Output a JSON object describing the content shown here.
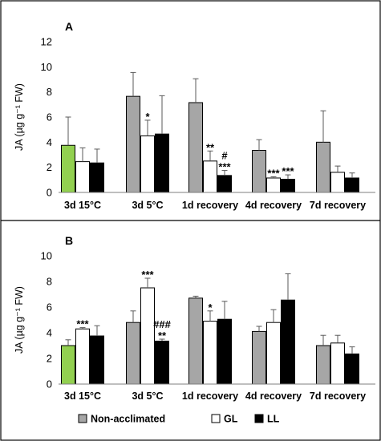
{
  "chart_data": [
    {
      "panel": "A",
      "type": "bar",
      "ylabel": "JA (µg g⁻¹ FW)",
      "ylim": [
        0,
        12
      ],
      "yticks": [
        "0",
        "2",
        "4",
        "6",
        "8",
        "10",
        "12"
      ],
      "categories": [
        "3d 15°C",
        "3d 5°C",
        "1d recovery",
        "4d recovery",
        "7d recovery"
      ],
      "series": [
        {
          "name": "Non-acclimated",
          "values": [
            3.75,
            7.65,
            7.15,
            3.35,
            4.0
          ],
          "errors": [
            2.25,
            1.9,
            1.9,
            0.85,
            2.5
          ]
        },
        {
          "name": "GL",
          "values": [
            2.45,
            4.5,
            2.5,
            1.15,
            1.6
          ],
          "errors": [
            1.1,
            1.25,
            0.8,
            0.1,
            0.5
          ]
        },
        {
          "name": "LL",
          "values": [
            2.35,
            4.65,
            1.35,
            1.05,
            1.15
          ],
          "errors": [
            1.1,
            3.05,
            0.4,
            0.35,
            0.4
          ]
        }
      ],
      "annotations": [
        {
          "category": "3d 5°C",
          "series": "GL",
          "lines": [
            "*"
          ]
        },
        {
          "category": "1d recovery",
          "series": "GL",
          "lines": [
            "**"
          ]
        },
        {
          "category": "1d recovery",
          "series": "LL",
          "lines": [
            "#",
            "***"
          ]
        },
        {
          "category": "4d recovery",
          "series": "GL",
          "lines": [
            "***"
          ]
        },
        {
          "category": "4d recovery",
          "series": "LL",
          "lines": [
            "***"
          ]
        }
      ],
      "first_bar_color": "#92d050"
    },
    {
      "panel": "B",
      "type": "bar",
      "ylabel": "JA (µg g⁻¹ FW)",
      "ylim": [
        0,
        10
      ],
      "yticks": [
        "0",
        "2",
        "4",
        "6",
        "8",
        "10"
      ],
      "categories": [
        "3d 15°C",
        "3d 5°C",
        "1d recovery",
        "4d recovery",
        "7d recovery"
      ],
      "series": [
        {
          "name": "Non-acclimated",
          "values": [
            3.0,
            4.8,
            6.7,
            4.1,
            3.0
          ],
          "errors": [
            0.45,
            0.9,
            0.15,
            0.4,
            0.8
          ]
        },
        {
          "name": "GL",
          "values": [
            4.3,
            7.5,
            4.9,
            4.8,
            3.2
          ],
          "errors": [
            0.1,
            0.75,
            0.8,
            1.0,
            0.6
          ]
        },
        {
          "name": "LL",
          "values": [
            3.75,
            3.35,
            5.05,
            6.55,
            2.35
          ],
          "errors": [
            0.8,
            0.15,
            1.4,
            2.05,
            0.55
          ]
        }
      ],
      "annotations": [
        {
          "category": "3d 15°C",
          "series": "GL",
          "lines": [
            "***"
          ]
        },
        {
          "category": "3d 5°C",
          "series": "GL",
          "lines": [
            "***"
          ]
        },
        {
          "category": "3d 5°C",
          "series": "LL",
          "lines": [
            "###",
            "**"
          ]
        },
        {
          "category": "1d recovery",
          "series": "GL",
          "lines": [
            "*"
          ]
        }
      ],
      "first_bar_color": "#92d050"
    }
  ],
  "legend": {
    "items": [
      {
        "label": "Non-acclimated",
        "color": "#a6a6a6"
      },
      {
        "label": "GL",
        "color": "#ffffff"
      },
      {
        "label": "LL",
        "color": "#000000"
      }
    ]
  },
  "colors": {
    "non_acclimated": "#a6a6a6",
    "gl": "#ffffff",
    "ll": "#000000",
    "highlight": "#92d050",
    "frame": "#000000"
  }
}
